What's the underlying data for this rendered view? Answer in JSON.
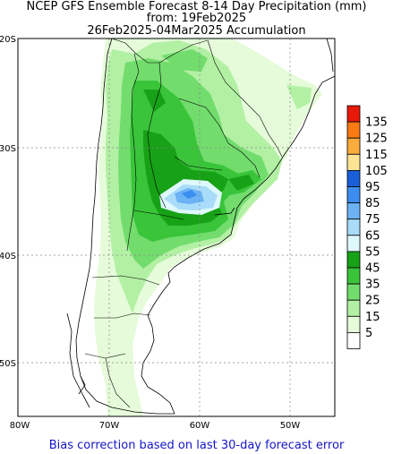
{
  "title": {
    "line1": "NCEP GFS Ensemble Forecast 8-14 Day Precipitation (mm)",
    "line2": "from: 19Feb2025",
    "line3": "26Feb2025-04Mar2025 Accumulation"
  },
  "axes": {
    "lat_labels": [
      "20S",
      "30S",
      "40S",
      "50S"
    ],
    "lon_labels": [
      "80W",
      "70W",
      "60W",
      "50W"
    ]
  },
  "legend": {
    "levels": [
      "135",
      "125",
      "115",
      "105",
      "95",
      "85",
      "75",
      "65",
      "55",
      "45",
      "35",
      "25",
      "15",
      "5"
    ],
    "colors": [
      "#e8190a",
      "#fa7a14",
      "#fbaa3c",
      "#fde494",
      "#1a5fd8",
      "#3b8ef0",
      "#6cb2f5",
      "#a9dcf9",
      "#def8fb",
      "#17a116",
      "#39c43a",
      "#72dc6d",
      "#b2f0a4",
      "#e5fbd9",
      "#ffffff"
    ]
  },
  "footer": "Bias correction based on last 30-day forecast error"
}
